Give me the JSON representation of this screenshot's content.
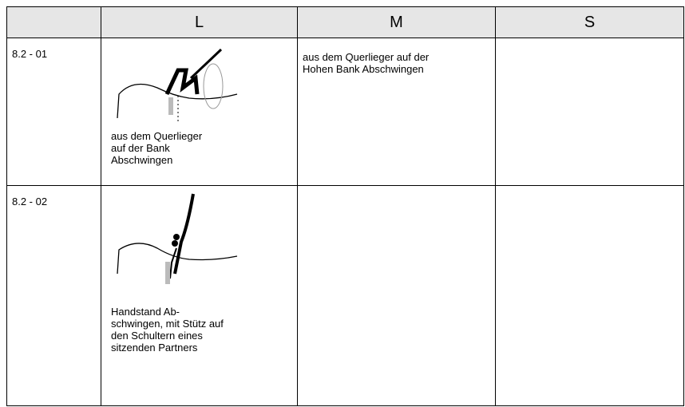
{
  "table": {
    "headers": [
      "L",
      "M",
      "S"
    ],
    "rows": [
      {
        "id": "8.2 - 01",
        "L": [
          "aus dem Querlieger",
          "auf der Bank",
          "Abschwingen"
        ],
        "M": [
          "aus dem Querlieger auf der",
          "Hohen Bank Abschwingen"
        ]
      },
      {
        "id": "8.2 - 02",
        "L": [
          "Handstand Ab-",
          "schwingen, mit Stütz auf",
          "den Schultern eines",
          "sitzenden Partners"
        ]
      }
    ]
  }
}
